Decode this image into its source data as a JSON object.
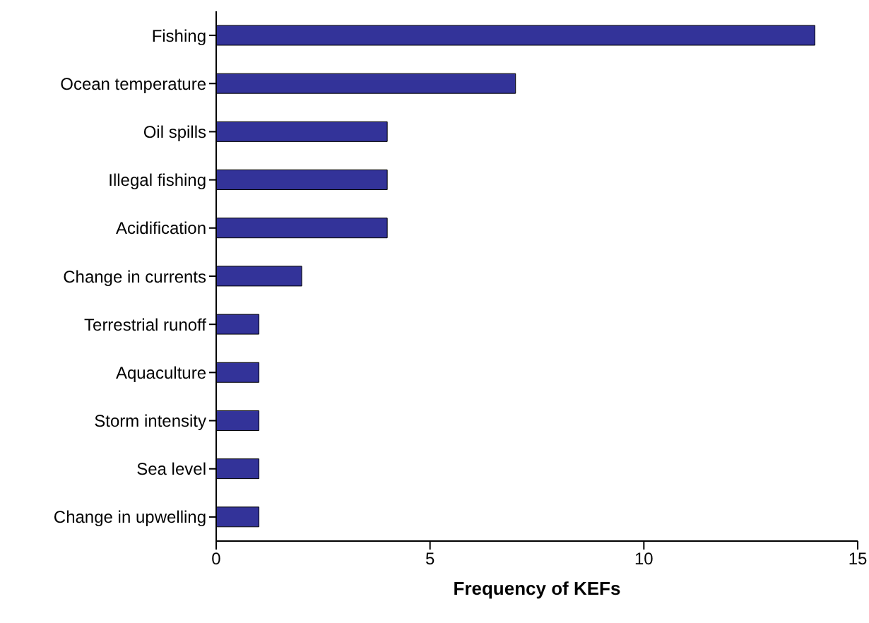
{
  "chart_data": {
    "type": "bar",
    "orientation": "horizontal",
    "xlabel": "Frequency of KEFs",
    "categories": [
      "Fishing",
      "Ocean temperature",
      "Oil spills",
      "Illegal fishing",
      "Acidification",
      "Change in currents",
      "Terrestrial runoff",
      "Aquaculture",
      "Storm intensity",
      "Sea level",
      "Change in upwelling"
    ],
    "values": [
      14,
      7,
      4,
      4,
      4,
      2,
      1,
      1,
      1,
      1,
      1
    ],
    "color": "#333399",
    "xlim": [
      0,
      15
    ],
    "xticks": [
      0,
      5,
      10,
      15
    ],
    "grid": false,
    "legend": false
  }
}
